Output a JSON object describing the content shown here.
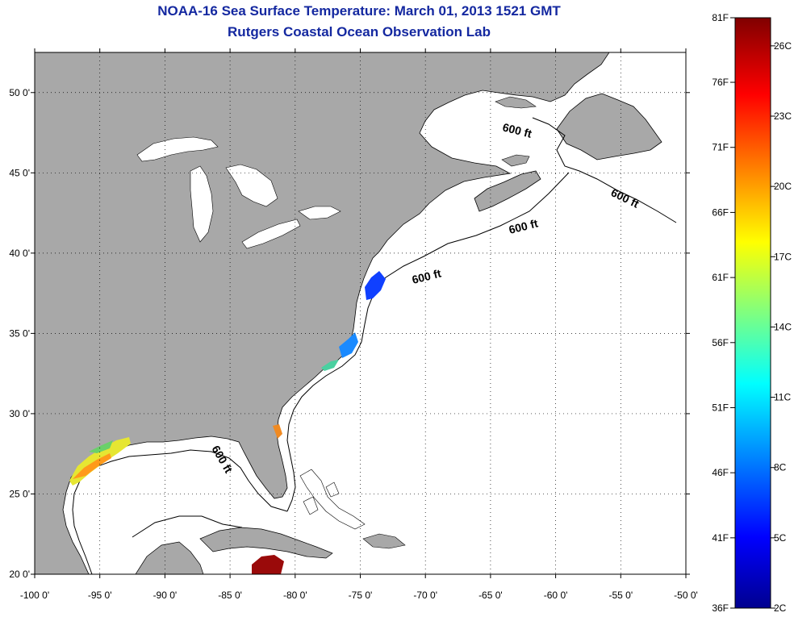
{
  "title": {
    "line1": "NOAA-16 Sea Surface Temperature:  March 01, 2013 1521 GMT",
    "line2": "Rutgers Coastal Ocean Observation Lab"
  },
  "map": {
    "lon_range": [
      -100,
      -50
    ],
    "lat_range": [
      20,
      52.5
    ],
    "lon_ticks": [
      {
        "value": -100,
        "label": "-100 0'"
      },
      {
        "value": -95,
        "label": "-95 0'"
      },
      {
        "value": -90,
        "label": "-90 0'"
      },
      {
        "value": -85,
        "label": "-85 0'"
      },
      {
        "value": -80,
        "label": "-80 0'"
      },
      {
        "value": -75,
        "label": "-75 0'"
      },
      {
        "value": -70,
        "label": "-70 0'"
      },
      {
        "value": -65,
        "label": "-65 0'"
      },
      {
        "value": -60,
        "label": "-60 0'"
      },
      {
        "value": -55,
        "label": "-55 0'"
      },
      {
        "value": -50,
        "label": "-50 0'"
      }
    ],
    "lat_ticks": [
      {
        "value": 20,
        "label": "20 0'"
      },
      {
        "value": 25,
        "label": "25 0'"
      },
      {
        "value": 30,
        "label": "30 0'"
      },
      {
        "value": 35,
        "label": "35 0'"
      },
      {
        "value": 40,
        "label": "40 0'"
      },
      {
        "value": 45,
        "label": "45 0'"
      },
      {
        "value": 50,
        "label": "50 0'"
      }
    ],
    "grid": "dotted",
    "land_color": "#a8a8a8",
    "ocean_color": "#ffffff",
    "isobath_labels": [
      "600 ft",
      "600 ft",
      "600 ft",
      "600 ft",
      "600 ft"
    ]
  },
  "colorbar": {
    "fahrenheit_labels": [
      "81F",
      "76F",
      "71F",
      "66F",
      "61F",
      "56F",
      "51F",
      "46F",
      "41F",
      "36F"
    ],
    "celsius_labels": [
      "26C",
      "23C",
      "20C",
      "17C",
      "14C",
      "11C",
      "8C",
      "5C",
      "2C"
    ],
    "range_c": [
      2,
      27.2
    ],
    "colors": [
      "#00008f",
      "#0000ff",
      "#00ffff",
      "#ffff00",
      "#ff0000",
      "#800000"
    ]
  }
}
